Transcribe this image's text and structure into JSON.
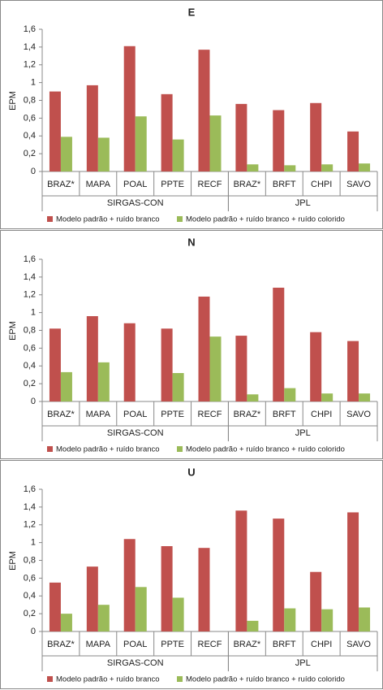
{
  "chart_data": [
    {
      "type": "bar",
      "title": "E",
      "ylabel": "EPM",
      "groups": [
        {
          "name": "SIRGAS-CON",
          "categories": [
            "BRAZ*",
            "MAPA",
            "POAL",
            "PPTE",
            "RECF"
          ]
        },
        {
          "name": "JPL",
          "categories": [
            "BRAZ*",
            "BRFT",
            "CHPI",
            "SAVO"
          ]
        }
      ],
      "series": [
        {
          "name": "Modelo padrão + ruído branco",
          "color": "#c0504d",
          "values": [
            0.9,
            0.97,
            1.41,
            0.87,
            1.37,
            0.76,
            0.69,
            0.77,
            0.45
          ]
        },
        {
          "name": "Modelo padrão + ruído branco + ruído colorido",
          "color": "#9bbb59",
          "values": [
            0.39,
            0.38,
            0.62,
            0.36,
            0.63,
            0.08,
            0.07,
            0.08,
            0.09
          ]
        }
      ],
      "ylim": [
        0,
        1.6
      ],
      "yticks": [
        0,
        {
          "value": 0.2,
          "label": "0,2"
        },
        {
          "value": 0.4,
          "label": "0,4"
        },
        {
          "value": 0.6,
          "label": "0,6"
        },
        {
          "value": 0.8,
          "label": "0,8"
        },
        1,
        {
          "value": 1.2,
          "label": "1,2"
        },
        {
          "value": 1.4,
          "label": "1,4"
        },
        {
          "value": 1.6,
          "label": "1,6"
        }
      ],
      "legend": "bottom"
    },
    {
      "type": "bar",
      "title": "N",
      "ylabel": "EPM",
      "groups": [
        {
          "name": "SIRGAS-CON",
          "categories": [
            "BRAZ*",
            "MAPA",
            "POAL",
            "PPTE",
            "RECF"
          ]
        },
        {
          "name": "JPL",
          "categories": [
            "BRAZ*",
            "BRFT",
            "CHPI",
            "SAVO"
          ]
        }
      ],
      "series": [
        {
          "name": "Modelo padrão + ruído branco",
          "color": "#c0504d",
          "values": [
            0.82,
            0.96,
            0.88,
            0.82,
            1.18,
            0.74,
            1.28,
            0.78,
            0.68
          ]
        },
        {
          "name": "Modelo padrão + ruído branco + ruído colorido",
          "color": "#9bbb59",
          "values": [
            0.33,
            0.44,
            null,
            0.32,
            0.73,
            0.08,
            0.15,
            0.09,
            0.09
          ]
        }
      ],
      "ylim": [
        0,
        1.6
      ],
      "yticks": [
        0,
        {
          "value": 0.2,
          "label": "0,2"
        },
        {
          "value": 0.4,
          "label": "0,4"
        },
        {
          "value": 0.6,
          "label": "0,6"
        },
        {
          "value": 0.8,
          "label": "0,8"
        },
        1,
        {
          "value": 1.2,
          "label": "1,2"
        },
        {
          "value": 1.4,
          "label": "1,4"
        },
        {
          "value": 1.6,
          "label": "1,6"
        }
      ],
      "legend": "bottom"
    },
    {
      "type": "bar",
      "title": "U",
      "ylabel": "EPM",
      "groups": [
        {
          "name": "SIRGAS-CON",
          "categories": [
            "BRAZ*",
            "MAPA",
            "POAL",
            "PPTE",
            "RECF"
          ]
        },
        {
          "name": "JPL",
          "categories": [
            "BRAZ*",
            "BRFT",
            "CHPI",
            "SAVO"
          ]
        }
      ],
      "series": [
        {
          "name": "Modelo padrão + ruído branco",
          "color": "#c0504d",
          "values": [
            0.55,
            0.73,
            1.04,
            0.96,
            0.94,
            1.36,
            1.27,
            0.67,
            1.34
          ]
        },
        {
          "name": "Modelo padrão + ruído branco + ruído colorido",
          "color": "#9bbb59",
          "values": [
            0.2,
            0.3,
            0.5,
            0.38,
            null,
            0.12,
            0.26,
            0.25,
            0.27
          ]
        }
      ],
      "ylim": [
        0,
        1.6
      ],
      "yticks": [
        0,
        {
          "value": 0.2,
          "label": "0,2"
        },
        {
          "value": 0.4,
          "label": "0,4"
        },
        {
          "value": 0.6,
          "label": "0,6"
        },
        {
          "value": 0.8,
          "label": "0,8"
        },
        1,
        {
          "value": 1.2,
          "label": "1,2"
        },
        {
          "value": 1.4,
          "label": "1,4"
        },
        {
          "value": 1.6,
          "label": "1,6"
        }
      ],
      "legend": "bottom"
    }
  ]
}
